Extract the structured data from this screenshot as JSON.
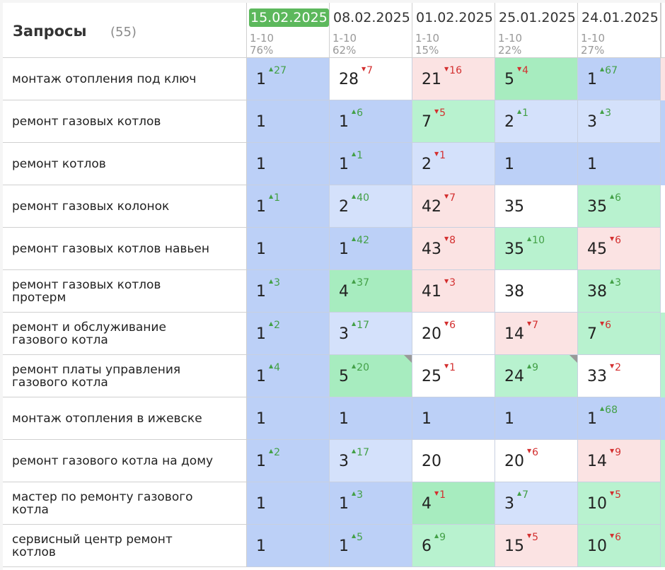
{
  "header": {
    "title": "Запросы",
    "count": "(55)",
    "columns": [
      {
        "date": "15.02.2025",
        "range": "1-10",
        "pct": "76%",
        "current": true
      },
      {
        "date": "08.02.2025",
        "range": "1-10",
        "pct": "62%",
        "current": false
      },
      {
        "date": "01.02.2025",
        "range": "1-10",
        "pct": "15%",
        "current": false
      },
      {
        "date": "25.01.2025",
        "range": "1-10",
        "pct": "22%",
        "current": false
      },
      {
        "date": "24.01.2025",
        "range": "1-10",
        "pct": "27%",
        "current": false
      }
    ]
  },
  "colors": {
    "blue": "#bcd0f7",
    "light_blue": "#d4e1fb",
    "green": "#b8f2cf",
    "dark_green": "#a7ecbf",
    "red": "#fbe3e3",
    "white": "#ffffff",
    "current_date_bg": "#5cb85c",
    "up": "#43a047",
    "down": "#d32f2f"
  },
  "rows": [
    {
      "query": "монтаж отопления под ключ",
      "cells": [
        {
          "pos": "1",
          "delta": "27",
          "dir": "up",
          "color": "blue"
        },
        {
          "pos": "28",
          "delta": "7",
          "dir": "down",
          "color": "white"
        },
        {
          "pos": "21",
          "delta": "16",
          "dir": "down",
          "color": "red"
        },
        {
          "pos": "5",
          "delta": "4",
          "dir": "down",
          "color": "dark_green"
        },
        {
          "pos": "1",
          "delta": "67",
          "dir": "up",
          "color": "blue"
        }
      ],
      "edge": "red"
    },
    {
      "query": "ремонт газовых котлов",
      "cells": [
        {
          "pos": "1",
          "delta": "",
          "dir": "",
          "color": "blue"
        },
        {
          "pos": "1",
          "delta": "6",
          "dir": "up",
          "color": "blue"
        },
        {
          "pos": "7",
          "delta": "5",
          "dir": "down",
          "color": "green"
        },
        {
          "pos": "2",
          "delta": "1",
          "dir": "up",
          "color": "light_blue"
        },
        {
          "pos": "3",
          "delta": "3",
          "dir": "up",
          "color": "light_blue"
        }
      ],
      "edge": "blue"
    },
    {
      "query": "ремонт котлов",
      "cells": [
        {
          "pos": "1",
          "delta": "",
          "dir": "",
          "color": "blue"
        },
        {
          "pos": "1",
          "delta": "1",
          "dir": "up",
          "color": "blue"
        },
        {
          "pos": "2",
          "delta": "1",
          "dir": "down",
          "color": "light_blue"
        },
        {
          "pos": "1",
          "delta": "",
          "dir": "",
          "color": "blue"
        },
        {
          "pos": "1",
          "delta": "",
          "dir": "",
          "color": "blue"
        }
      ],
      "edge": "blue"
    },
    {
      "query": "ремонт газовых колонок",
      "cells": [
        {
          "pos": "1",
          "delta": "1",
          "dir": "up",
          "color": "blue"
        },
        {
          "pos": "2",
          "delta": "40",
          "dir": "up",
          "color": "light_blue"
        },
        {
          "pos": "42",
          "delta": "7",
          "dir": "down",
          "color": "red"
        },
        {
          "pos": "35",
          "delta": "",
          "dir": "",
          "color": "white"
        },
        {
          "pos": "35",
          "delta": "6",
          "dir": "up",
          "color": "green"
        }
      ],
      "edge": "white"
    },
    {
      "query": "ремонт газовых котлов навьен",
      "cells": [
        {
          "pos": "1",
          "delta": "",
          "dir": "",
          "color": "blue"
        },
        {
          "pos": "1",
          "delta": "42",
          "dir": "up",
          "color": "blue"
        },
        {
          "pos": "43",
          "delta": "8",
          "dir": "down",
          "color": "red"
        },
        {
          "pos": "35",
          "delta": "10",
          "dir": "up",
          "color": "green"
        },
        {
          "pos": "45",
          "delta": "6",
          "dir": "down",
          "color": "red"
        }
      ],
      "edge": "white"
    },
    {
      "query": "ремонт газовых котлов протерм",
      "cells": [
        {
          "pos": "1",
          "delta": "3",
          "dir": "up",
          "color": "blue"
        },
        {
          "pos": "4",
          "delta": "37",
          "dir": "up",
          "color": "dark_green"
        },
        {
          "pos": "41",
          "delta": "3",
          "dir": "down",
          "color": "red"
        },
        {
          "pos": "38",
          "delta": "",
          "dir": "",
          "color": "white"
        },
        {
          "pos": "38",
          "delta": "3",
          "dir": "up",
          "color": "green"
        }
      ],
      "edge": "white"
    },
    {
      "query": "ремонт и обслуживание газового котла",
      "cells": [
        {
          "pos": "1",
          "delta": "2",
          "dir": "up",
          "color": "blue"
        },
        {
          "pos": "3",
          "delta": "17",
          "dir": "up",
          "color": "light_blue"
        },
        {
          "pos": "20",
          "delta": "6",
          "dir": "down",
          "color": "white"
        },
        {
          "pos": "14",
          "delta": "7",
          "dir": "down",
          "color": "red"
        },
        {
          "pos": "7",
          "delta": "6",
          "dir": "down",
          "color": "green"
        }
      ],
      "edge": "green"
    },
    {
      "query": "ремонт платы управления газового котла",
      "cells": [
        {
          "pos": "1",
          "delta": "4",
          "dir": "up",
          "color": "blue"
        },
        {
          "pos": "5",
          "delta": "20",
          "dir": "up",
          "color": "dark_green",
          "corner": true
        },
        {
          "pos": "25",
          "delta": "1",
          "dir": "down",
          "color": "white"
        },
        {
          "pos": "24",
          "delta": "9",
          "dir": "up",
          "color": "green",
          "corner": true
        },
        {
          "pos": "33",
          "delta": "2",
          "dir": "down",
          "color": "white"
        }
      ],
      "edge": "green"
    },
    {
      "query": "монтаж отопления в ижевске",
      "cells": [
        {
          "pos": "1",
          "delta": "",
          "dir": "",
          "color": "blue"
        },
        {
          "pos": "1",
          "delta": "",
          "dir": "",
          "color": "blue"
        },
        {
          "pos": "1",
          "delta": "",
          "dir": "",
          "color": "blue"
        },
        {
          "pos": "1",
          "delta": "",
          "dir": "",
          "color": "blue"
        },
        {
          "pos": "1",
          "delta": "68",
          "dir": "up",
          "color": "blue"
        }
      ],
      "edge": "blue"
    },
    {
      "query": "ремонт газового котла на дому",
      "cells": [
        {
          "pos": "1",
          "delta": "2",
          "dir": "up",
          "color": "blue"
        },
        {
          "pos": "3",
          "delta": "17",
          "dir": "up",
          "color": "light_blue"
        },
        {
          "pos": "20",
          "delta": "",
          "dir": "",
          "color": "white"
        },
        {
          "pos": "20",
          "delta": "6",
          "dir": "down",
          "color": "white"
        },
        {
          "pos": "14",
          "delta": "9",
          "dir": "down",
          "color": "red"
        }
      ],
      "edge": "green"
    },
    {
      "query": "мастер по ремонту газового котла",
      "cells": [
        {
          "pos": "1",
          "delta": "",
          "dir": "",
          "color": "blue"
        },
        {
          "pos": "1",
          "delta": "3",
          "dir": "up",
          "color": "blue"
        },
        {
          "pos": "4",
          "delta": "1",
          "dir": "down",
          "color": "dark_green"
        },
        {
          "pos": "3",
          "delta": "7",
          "dir": "up",
          "color": "light_blue"
        },
        {
          "pos": "10",
          "delta": "5",
          "dir": "down",
          "color": "green"
        }
      ],
      "edge": "green"
    },
    {
      "query": "сервисный центр ремонт котлов",
      "cells": [
        {
          "pos": "1",
          "delta": "",
          "dir": "",
          "color": "blue"
        },
        {
          "pos": "1",
          "delta": "5",
          "dir": "up",
          "color": "blue"
        },
        {
          "pos": "6",
          "delta": "9",
          "dir": "up",
          "color": "green"
        },
        {
          "pos": "15",
          "delta": "5",
          "dir": "down",
          "color": "red"
        },
        {
          "pos": "10",
          "delta": "6",
          "dir": "down",
          "color": "green"
        }
      ],
      "edge": "green"
    }
  ]
}
